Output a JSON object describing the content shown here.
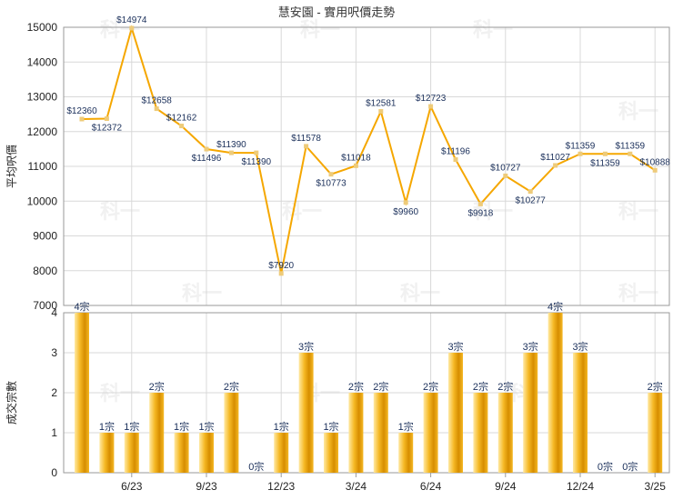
{
  "chart_data": [
    {
      "type": "line",
      "title": "慧安園 - 實用呎價走勢",
      "ylabel": "平均呎價",
      "ylim": [
        7000,
        15000
      ],
      "y_ticks": [
        7000,
        8000,
        9000,
        10000,
        11000,
        12000,
        13000,
        14000,
        15000
      ],
      "x_tick_labels": [
        "6/23",
        "9/23",
        "12/23",
        "3/24",
        "6/24",
        "9/24",
        "12/24",
        "3/25"
      ],
      "points": [
        {
          "index": 0,
          "value": 12360,
          "label": "$12360"
        },
        {
          "index": 1,
          "value": 12372,
          "label": "$12372"
        },
        {
          "index": 2,
          "value": 14974,
          "label": "$14974"
        },
        {
          "index": 3,
          "value": 12658,
          "label": "$12658"
        },
        {
          "index": 4,
          "value": 12162,
          "label": "$12162"
        },
        {
          "index": 5,
          "value": 11496,
          "label": "$11496"
        },
        {
          "index": 6,
          "value": 11390,
          "label": "$11390"
        },
        {
          "index": 7,
          "value": 11390,
          "label": "$11390"
        },
        {
          "index": 8,
          "value": 7920,
          "label": "$7920"
        },
        {
          "index": 9,
          "value": 11578,
          "label": "$11578"
        },
        {
          "index": 10,
          "value": 10773,
          "label": "$10773"
        },
        {
          "index": 11,
          "value": 11018,
          "label": "$11018"
        },
        {
          "index": 12,
          "value": 12581,
          "label": "$12581"
        },
        {
          "index": 13,
          "value": 9960,
          "label": "$9960"
        },
        {
          "index": 14,
          "value": 12723,
          "label": "$12723"
        },
        {
          "index": 15,
          "value": 11196,
          "label": "$11196"
        },
        {
          "index": 16,
          "value": 9918,
          "label": "$9918"
        },
        {
          "index": 17,
          "value": 10727,
          "label": "$10727"
        },
        {
          "index": 18,
          "value": 10277,
          "label": "$10277"
        },
        {
          "index": 19,
          "value": 11027,
          "label": "$11027"
        },
        {
          "index": 20,
          "value": 11359,
          "label": "$11359"
        },
        {
          "index": 21,
          "value": 11359,
          "label": "$11359"
        },
        {
          "index": 22,
          "value": 11359,
          "label": "$11359"
        },
        {
          "index": 23,
          "value": 10888,
          "label": "$10888"
        }
      ]
    },
    {
      "type": "bar",
      "ylabel": "成交宗數",
      "ylim": [
        0,
        4
      ],
      "y_ticks": [
        0,
        1,
        2,
        3,
        4
      ],
      "x_tick_labels": [
        "6/23",
        "9/23",
        "12/23",
        "3/24",
        "6/24",
        "9/24",
        "12/24",
        "3/25"
      ],
      "values": [
        4,
        1,
        1,
        2,
        1,
        1,
        2,
        0,
        1,
        3,
        1,
        2,
        2,
        1,
        2,
        3,
        2,
        2,
        3,
        4,
        3,
        0,
        0,
        2
      ],
      "labels": [
        "4宗",
        "1宗",
        "1宗",
        "2宗",
        "1宗",
        "1宗",
        "2宗",
        "0宗",
        "1宗",
        "3宗",
        "1宗",
        "2宗",
        "2宗",
        "1宗",
        "2宗",
        "3宗",
        "2宗",
        "2宗",
        "3宗",
        "4宗",
        "3宗",
        "0宗",
        "0宗",
        "2宗"
      ]
    }
  ],
  "watermark": "科一",
  "colors": {
    "line": "#f5a700",
    "marker": "#eecb7a",
    "bar_light": "#ffe9a3",
    "bar_mid": "#f5b824",
    "bar_dark": "#d68d00",
    "label": "#1a2f5a"
  }
}
